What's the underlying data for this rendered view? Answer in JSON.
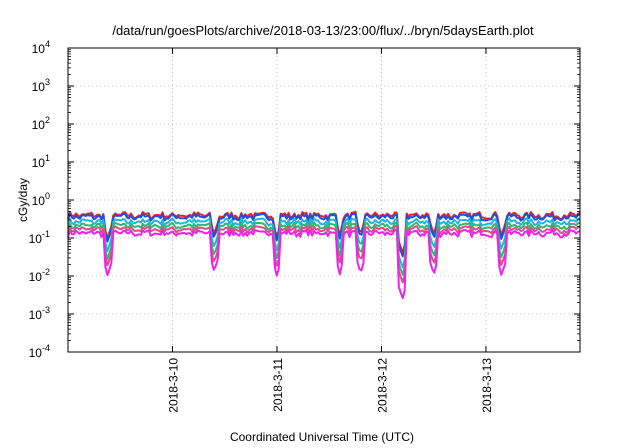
{
  "chart_data": {
    "type": "line",
    "title": "/data/run/goesPlots/archive/2018-03-13/23:00/flux/../bryn/5daysEarth.plot",
    "xlabel": "Coordinated Universal Time (UTC)",
    "ylabel": "cGy/day",
    "yscale": "log",
    "ylim": [
      0.0001,
      10000
    ],
    "xlim": [
      0,
      4.9
    ],
    "y_ticks": [
      {
        "exp": "-4",
        "value": 0.0001
      },
      {
        "exp": "-3",
        "value": 0.001
      },
      {
        "exp": "-2",
        "value": 0.01
      },
      {
        "exp": "-1",
        "value": 0.1
      },
      {
        "exp": "0",
        "value": 1
      },
      {
        "exp": "1",
        "value": 10
      },
      {
        "exp": "2",
        "value": 100
      },
      {
        "exp": "3",
        "value": 1000
      },
      {
        "exp": "4",
        "value": 10000
      }
    ],
    "y_tick_base": "10",
    "x_ticks": [
      {
        "label": "2018-3-10",
        "value": 1
      },
      {
        "label": "2018-3-11",
        "value": 2
      },
      {
        "label": "2018-3-12",
        "value": 3
      },
      {
        "label": "2018-3-13",
        "value": 4
      }
    ],
    "grid": true,
    "series": [
      {
        "color": "#e8212a",
        "level": 0.4,
        "dips": [
          [
            0.38,
            0.22
          ],
          [
            1.4,
            0.28
          ],
          [
            2.0,
            0.24
          ],
          [
            2.6,
            0.28
          ],
          [
            2.8,
            0.28
          ],
          [
            3.2,
            0.09
          ],
          [
            3.5,
            0.28
          ],
          [
            4.15,
            0.26
          ]
        ]
      },
      {
        "color": "#1f4fe0",
        "level": 0.36,
        "dips": [
          [
            0.38,
            0.2
          ],
          [
            1.4,
            0.25
          ],
          [
            2.0,
            0.22
          ],
          [
            2.6,
            0.26
          ],
          [
            2.8,
            0.26
          ],
          [
            3.2,
            0.08
          ],
          [
            3.5,
            0.25
          ],
          [
            4.15,
            0.23
          ]
        ]
      },
      {
        "color": "#1fb7d8",
        "level": 0.27,
        "dips": [
          [
            0.38,
            0.15
          ],
          [
            1.4,
            0.19
          ],
          [
            2.0,
            0.16
          ],
          [
            2.6,
            0.2
          ],
          [
            2.8,
            0.2
          ],
          [
            3.2,
            0.055
          ],
          [
            3.5,
            0.18
          ],
          [
            4.15,
            0.17
          ]
        ]
      },
      {
        "color": "#2eb872",
        "level": 0.21,
        "dips": [
          [
            0.38,
            0.12
          ],
          [
            1.4,
            0.15
          ],
          [
            2.0,
            0.13
          ],
          [
            2.6,
            0.16
          ],
          [
            2.8,
            0.16
          ],
          [
            3.2,
            0.045
          ],
          [
            3.5,
            0.14
          ],
          [
            4.15,
            0.13
          ]
        ]
      },
      {
        "color": "#e04b8a",
        "level": 0.17,
        "dips": [
          [
            0.38,
            0.1
          ],
          [
            1.4,
            0.12
          ],
          [
            2.0,
            0.1
          ],
          [
            2.6,
            0.13
          ],
          [
            2.8,
            0.13
          ],
          [
            3.2,
            0.035
          ],
          [
            3.5,
            0.11
          ],
          [
            4.15,
            0.1
          ]
        ]
      },
      {
        "color": "#ee22ee",
        "level": 0.135,
        "dips": [
          [
            0.38,
            0.07
          ],
          [
            1.4,
            0.09
          ],
          [
            2.0,
            0.07
          ],
          [
            2.6,
            0.08
          ],
          [
            2.8,
            0.08
          ],
          [
            3.2,
            0.017
          ],
          [
            3.5,
            0.075
          ],
          [
            4.15,
            0.07
          ]
        ]
      }
    ]
  }
}
